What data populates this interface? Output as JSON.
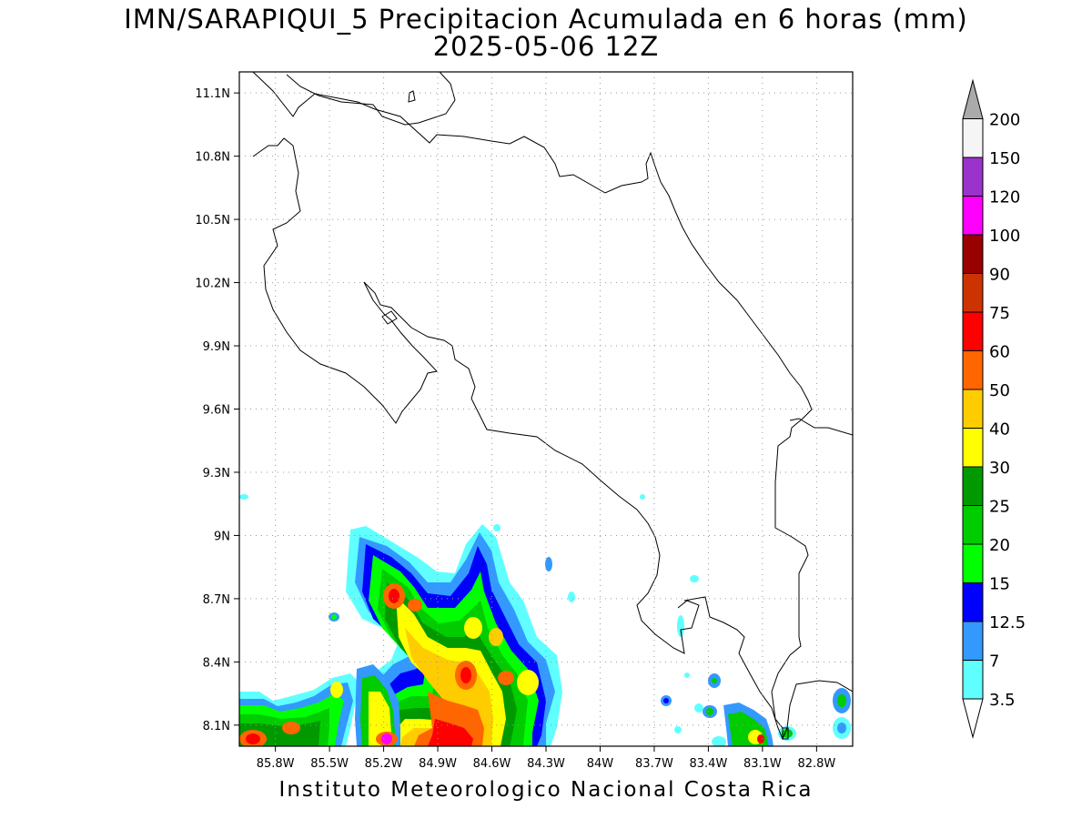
{
  "title": "IMN/SARAPIQUI_5 Precipitacion Acumulada en 6 horas (mm)",
  "subtitle": "2025-05-06 12Z",
  "footer": "Instituto Meteorologico Nacional Costa Rica",
  "map": {
    "lon_range": [
      -86.0,
      -82.6
    ],
    "lat_range": [
      8.0,
      11.2
    ],
    "x_ticks": [
      "85.8W",
      "85.5W",
      "85.2W",
      "84.9W",
      "84.6W",
      "84.3W",
      "84W",
      "83.7W",
      "83.4W",
      "83.1W",
      "82.8W"
    ],
    "y_ticks": [
      "11.1N",
      "10.8N",
      "10.5N",
      "10.2N",
      "9.9N",
      "9.6N",
      "9.3N",
      "9N",
      "8.7N",
      "8.4N",
      "8.1N"
    ],
    "grid": "dotted"
  },
  "colorbar": {
    "levels": [
      "3.5",
      "7",
      "12.5",
      "15",
      "20",
      "25",
      "30",
      "40",
      "50",
      "60",
      "75",
      "90",
      "100",
      "120",
      "150",
      "200"
    ],
    "colors": [
      "#5fffff",
      "#3399ff",
      "#0000ff",
      "#00ff00",
      "#00cc00",
      "#009900",
      "#ffff00",
      "#ffcc00",
      "#ff6600",
      "#ff0000",
      "#cc3300",
      "#990000",
      "#ff00ff",
      "#9933cc",
      "#f5f5f5",
      "#aaaaaa"
    ]
  }
}
